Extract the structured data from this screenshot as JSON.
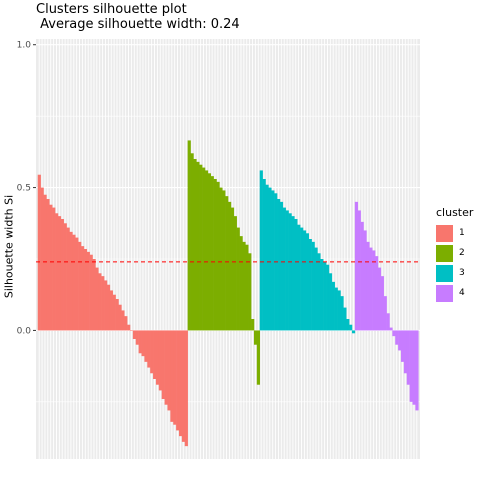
{
  "chart_data": {
    "type": "bar",
    "title": "Clusters silhouette plot",
    "subtitle": " Average silhouette width: 0.24",
    "xlabel": "",
    "ylabel": "Silhouette width Si",
    "ylim": [
      -0.45,
      1.02
    ],
    "y_ticks": [
      {
        "value": 0.0,
        "label": "0.0"
      },
      {
        "value": 0.5,
        "label": "0.5"
      },
      {
        "value": 1.0,
        "label": "1.0"
      }
    ],
    "reference_line": {
      "value": 0.24,
      "color": "#FF0000",
      "style": "dashed"
    },
    "legend": {
      "title": "cluster",
      "position": "right",
      "items": [
        {
          "label": "1",
          "color": "#F8766D"
        },
        {
          "label": "2",
          "color": "#7CAE00"
        },
        {
          "label": "3",
          "color": "#00BFC4"
        },
        {
          "label": "4",
          "color": "#C77CFF"
        }
      ]
    },
    "grid": true,
    "background": "#EBEBEB",
    "series": [
      {
        "name": "1",
        "color": "#F8766D",
        "values": [
          0.545,
          0.5,
          0.475,
          0.46,
          0.44,
          0.43,
          0.41,
          0.4,
          0.39,
          0.375,
          0.36,
          0.345,
          0.335,
          0.325,
          0.31,
          0.295,
          0.285,
          0.275,
          0.265,
          0.25,
          0.22,
          0.2,
          0.19,
          0.175,
          0.16,
          0.14,
          0.125,
          0.11,
          0.09,
          0.07,
          0.05,
          0.02,
          0.0,
          -0.03,
          -0.05,
          -0.08,
          -0.09,
          -0.11,
          -0.13,
          -0.15,
          -0.17,
          -0.19,
          -0.21,
          -0.24,
          -0.26,
          -0.28,
          -0.32,
          -0.33,
          -0.35,
          -0.37,
          -0.39,
          -0.405
        ]
      },
      {
        "name": "2",
        "color": "#7CAE00",
        "values": [
          0.665,
          0.62,
          0.6,
          0.59,
          0.58,
          0.57,
          0.56,
          0.55,
          0.54,
          0.53,
          0.52,
          0.5,
          0.49,
          0.47,
          0.45,
          0.43,
          0.4,
          0.36,
          0.33,
          0.31,
          0.3,
          0.27,
          0.04,
          -0.05,
          -0.19
        ]
      },
      {
        "name": "3",
        "color": "#00BFC4",
        "values": [
          0.56,
          0.53,
          0.51,
          0.5,
          0.49,
          0.48,
          0.46,
          0.45,
          0.43,
          0.42,
          0.41,
          0.4,
          0.39,
          0.37,
          0.36,
          0.35,
          0.34,
          0.32,
          0.31,
          0.29,
          0.27,
          0.25,
          0.24,
          0.23,
          0.2,
          0.17,
          0.15,
          0.14,
          0.12,
          0.08,
          0.04,
          0.02,
          -0.01
        ]
      },
      {
        "name": "4",
        "color": "#C77CFF",
        "values": [
          0.45,
          0.42,
          0.38,
          0.35,
          0.31,
          0.29,
          0.28,
          0.26,
          0.22,
          0.19,
          0.12,
          0.06,
          0.01,
          -0.02,
          -0.05,
          -0.07,
          -0.11,
          -0.15,
          -0.19,
          -0.25,
          -0.26,
          -0.28
        ]
      }
    ]
  }
}
